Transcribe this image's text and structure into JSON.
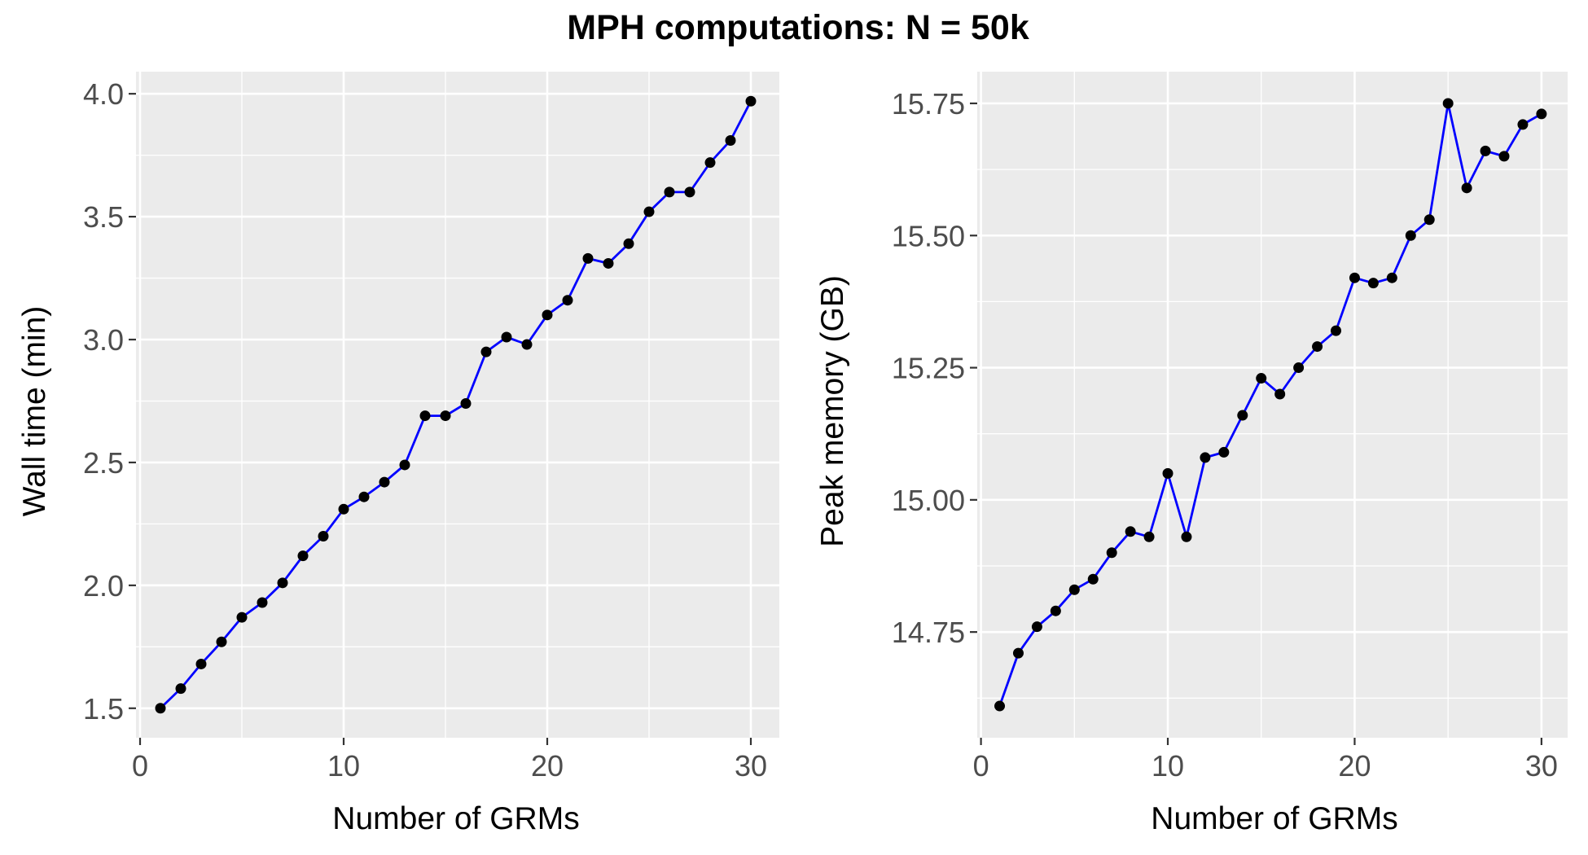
{
  "title": "MPH computations: N = 50k",
  "chart_data": [
    {
      "type": "line",
      "xlabel": "Number of GRMs",
      "ylabel": "Wall time (min)",
      "xlim": [
        -0.2,
        31.4
      ],
      "ylim": [
        1.38,
        4.09
      ],
      "x_ticks": [
        0,
        10,
        20,
        30
      ],
      "x_tick_labels": [
        "0",
        "10",
        "20",
        "30"
      ],
      "y_ticks": [
        1.5,
        2.0,
        2.5,
        3.0,
        3.5,
        4.0
      ],
      "y_tick_labels": [
        "1.5",
        "2.0",
        "2.5",
        "3.0",
        "3.5",
        "4.0"
      ],
      "grid": true,
      "line_color": "#0000ff",
      "point_color": "#000000",
      "x": [
        1,
        2,
        3,
        4,
        5,
        6,
        7,
        8,
        9,
        10,
        11,
        12,
        13,
        14,
        15,
        16,
        17,
        18,
        19,
        20,
        21,
        22,
        23,
        24,
        25,
        26,
        27,
        28,
        29,
        30
      ],
      "y": [
        1.5,
        1.58,
        1.68,
        1.77,
        1.87,
        1.93,
        2.01,
        2.12,
        2.2,
        2.31,
        2.36,
        2.42,
        2.49,
        2.69,
        2.69,
        2.74,
        2.95,
        3.01,
        2.98,
        3.1,
        3.16,
        3.33,
        3.31,
        3.39,
        3.52,
        3.6,
        3.6,
        3.72,
        3.81,
        3.97
      ]
    },
    {
      "type": "line",
      "xlabel": "Number of GRMs",
      "ylabel": "Peak memory (GB)",
      "xlim": [
        -0.2,
        31.4
      ],
      "ylim": [
        14.55,
        15.81
      ],
      "x_ticks": [
        0,
        10,
        20,
        30
      ],
      "x_tick_labels": [
        "0",
        "10",
        "20",
        "30"
      ],
      "y_ticks": [
        14.75,
        15.0,
        15.25,
        15.5,
        15.75
      ],
      "y_tick_labels": [
        "14.75",
        "15.00",
        "15.25",
        "15.50",
        "15.75"
      ],
      "grid": true,
      "line_color": "#0000ff",
      "point_color": "#000000",
      "x": [
        1,
        2,
        3,
        4,
        5,
        6,
        7,
        8,
        9,
        10,
        11,
        12,
        13,
        14,
        15,
        16,
        17,
        18,
        19,
        20,
        21,
        22,
        23,
        24,
        25,
        26,
        27,
        28,
        29,
        30
      ],
      "y": [
        14.61,
        14.71,
        14.76,
        14.79,
        14.83,
        14.85,
        14.9,
        14.94,
        14.93,
        15.05,
        14.93,
        15.08,
        15.09,
        15.16,
        15.23,
        15.2,
        15.25,
        15.29,
        15.32,
        15.42,
        15.41,
        15.42,
        15.5,
        15.53,
        15.75,
        15.59,
        15.66,
        15.65,
        15.71,
        15.73
      ]
    }
  ]
}
